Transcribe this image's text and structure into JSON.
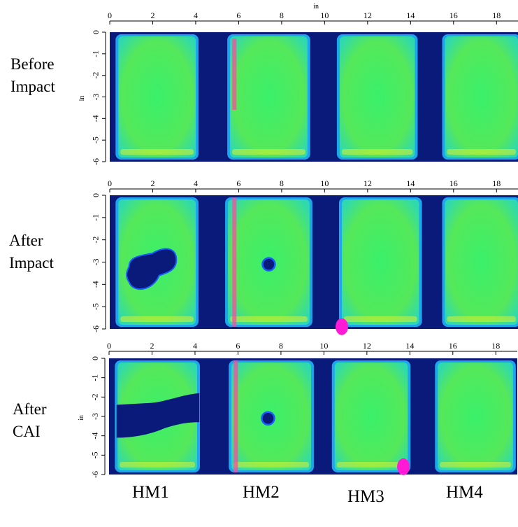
{
  "panels": [
    {
      "key": "before",
      "label_lines": [
        "Before",
        "Impact"
      ],
      "show_top_unit": true,
      "damage": [],
      "defects": [
        {
          "specimen": 1,
          "shape": "strip",
          "x": 5.8,
          "y0": 0.3,
          "y1": 3.6,
          "color": "#ff4aa0"
        }
      ]
    },
    {
      "key": "after_impact",
      "label_lines": [
        "After",
        "Impact"
      ],
      "show_top_unit": false,
      "damage": [
        {
          "specimen": "HM1",
          "cx": 2.0,
          "cy": 3.2,
          "note": "large impact delamination"
        },
        {
          "specimen": "HM2",
          "cx": 7.4,
          "cy": 3.1,
          "note": "small impact delamination"
        }
      ],
      "defects": [
        {
          "specimen": 1,
          "shape": "strip",
          "x": 5.8,
          "y0": 0.1,
          "y1": 5.9,
          "color": "#ff4aa0"
        },
        {
          "specimen": 2,
          "shape": "spot",
          "x": 10.8,
          "y": 5.9,
          "color": "#ff1ad6"
        }
      ]
    },
    {
      "key": "after_cai",
      "label_lines": [
        "After",
        "CAI"
      ],
      "show_top_unit": false,
      "damage": [
        {
          "specimen": "HM1",
          "note": "failure band across specimen"
        },
        {
          "specimen": "HM2",
          "cx": 7.4,
          "cy": 3.1,
          "note": "small impact delamination"
        }
      ],
      "defects": [
        {
          "specimen": 1,
          "shape": "strip",
          "x": 5.9,
          "y0": 0.1,
          "y1": 5.9,
          "color": "#ff4aa0"
        },
        {
          "specimen": 2,
          "shape": "spot",
          "x": 13.7,
          "y": 5.6,
          "color": "#ff1ad6"
        }
      ]
    }
  ],
  "specimen_labels": [
    "HM1",
    "HM2",
    "HM3",
    "HM4"
  ],
  "colors": {
    "background": "#0a1a7a",
    "edge": "#21c0ff",
    "core": "#3af06a",
    "hot": "#ff4aa0"
  },
  "chart_data": {
    "type": "heatmap",
    "title": "",
    "xlabel": "in",
    "ylabel": "in",
    "x_ticks": [
      0,
      2,
      4,
      6,
      8,
      10,
      12,
      14,
      16,
      18
    ],
    "y_ticks": [
      0,
      -1,
      -2,
      -3,
      -4,
      -5,
      -6
    ],
    "xlim": [
      0,
      19
    ],
    "ylim": [
      -6,
      0
    ],
    "specimens": [
      {
        "name": "HM1",
        "x_range": [
          0.4,
          4.0
        ]
      },
      {
        "name": "HM2",
        "x_range": [
          5.6,
          9.2
        ]
      },
      {
        "name": "HM3",
        "x_range": [
          10.6,
          14.2
        ]
      },
      {
        "name": "HM4",
        "x_range": [
          15.6,
          19.0
        ]
      }
    ],
    "conditions": [
      "Before Impact",
      "After Impact",
      "After CAI"
    ]
  }
}
